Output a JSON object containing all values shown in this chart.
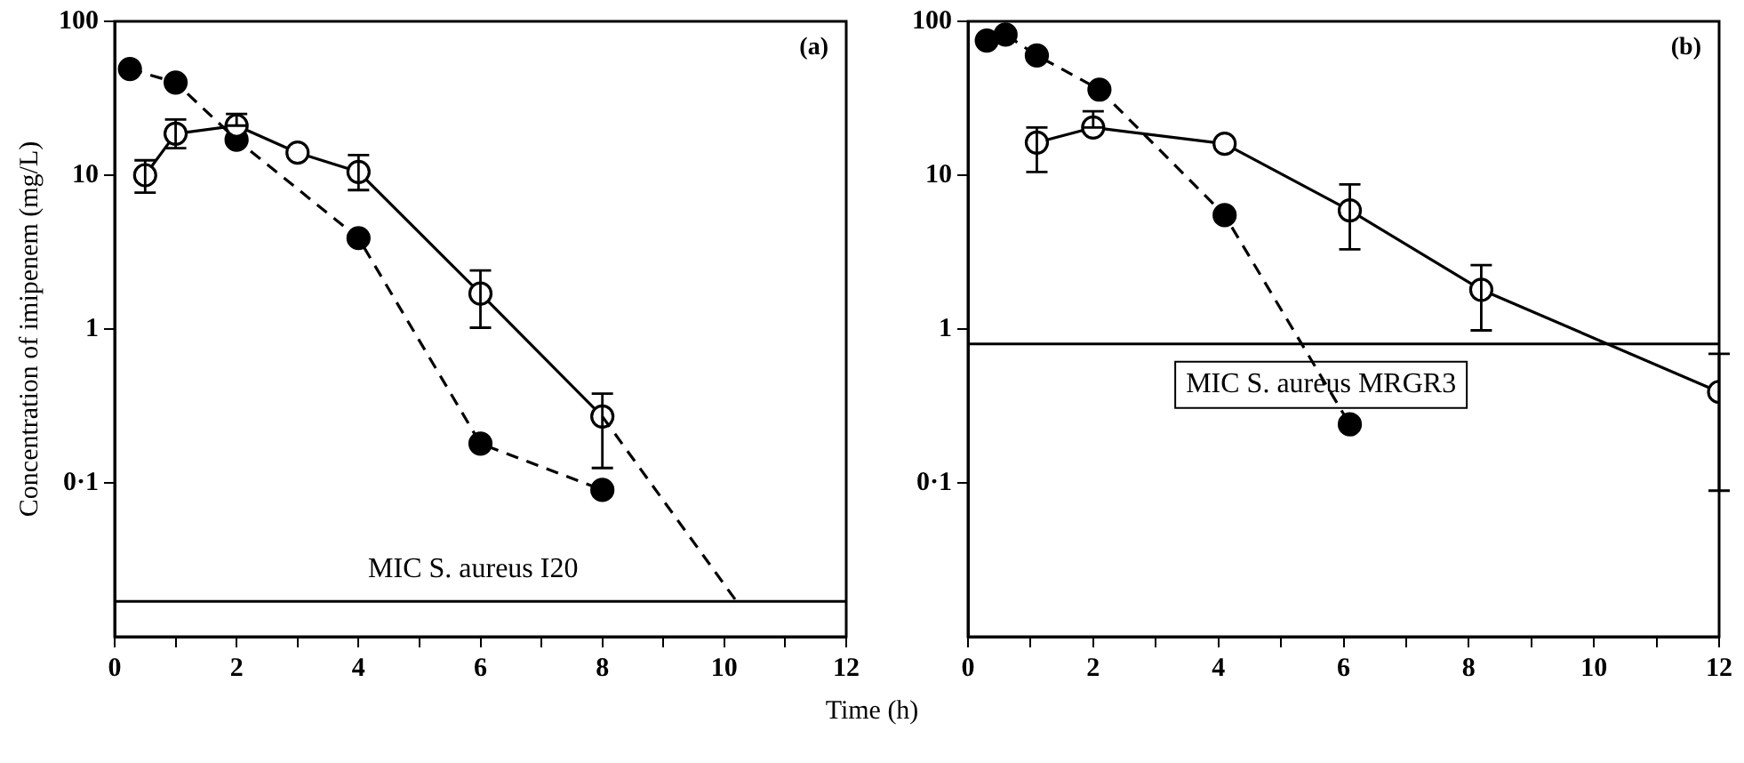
{
  "chart_data": [
    {
      "type": "line",
      "xlabel": "Time (h)",
      "ylabel": "Concentration of imipenem (mg/L)",
      "annotations": [
        "(a)"
      ],
      "log": "y",
      "grid": false,
      "legend": false,
      "marker": "circle",
      "xlim": [
        0,
        12
      ],
      "xticks": [
        0,
        {
          "value": 1,
          "label": null
        },
        2,
        {
          "value": 3,
          "label": null
        },
        4,
        {
          "value": 5,
          "label": null
        },
        6,
        {
          "value": 7,
          "label": null
        },
        8,
        {
          "value": 9,
          "label": null
        },
        10,
        {
          "value": 11,
          "label": null
        },
        12
      ],
      "ylim": [
        0.01,
        100
      ],
      "yticks": [
        {
          "value": 0.1,
          "label": "0·1"
        },
        1,
        10,
        100
      ],
      "ref_lines": [
        {
          "axis": "y",
          "value": 0.017,
          "label": "MIC S. aureus I20"
        }
      ],
      "series": [
        {
          "color": "#000000",
          "line_style": "dashed",
          "x": [
            0.25,
            1,
            2,
            4,
            6,
            8
          ],
          "values": [
            49,
            40,
            17,
            3.9,
            0.18,
            0.09
          ]
        },
        {
          "color": "#ffffff",
          "line_style": "solid",
          "x": [
            0.5,
            1,
            2,
            3,
            4,
            6,
            8
          ],
          "values": [
            10,
            18.6,
            21,
            14,
            10.5,
            1.7,
            0.27
          ],
          "errors": [
            [
              7.7,
              12.5
            ],
            [
              15,
              23
            ],
            [
              21,
              25
            ],
            null,
            [
              8,
              13.5
            ],
            [
              1.02,
              2.4
            ],
            [
              0.125,
              0.38
            ]
          ]
        },
        {
          "color": "#000000",
          "line_style": "dashed",
          "marker": "none",
          "x": [
            8,
            10.2
          ],
          "values": [
            0.27,
            0.017
          ]
        }
      ]
    },
    {
      "type": "line",
      "annotations": [
        "(b)"
      ],
      "log": "y",
      "grid": false,
      "legend": false,
      "marker": "circle",
      "xlim": [
        0,
        12
      ],
      "xticks": [
        0,
        {
          "value": 1,
          "label": null
        },
        2,
        {
          "value": 3,
          "label": null
        },
        4,
        {
          "value": 5,
          "label": null
        },
        6,
        {
          "value": 7,
          "label": null
        },
        8,
        {
          "value": 9,
          "label": null
        },
        10,
        {
          "value": 11,
          "label": null
        },
        12
      ],
      "ylim": [
        0.01,
        100
      ],
      "yticks": [
        {
          "value": 0.1,
          "label": "0·1"
        },
        1,
        10,
        100
      ],
      "ref_lines": [
        {
          "axis": "y",
          "value": 0.8,
          "label": "MIC S. aureus MRGR3"
        }
      ],
      "series": [
        {
          "color": "#000000",
          "line_style": "dashed",
          "x": [
            0.3,
            0.6,
            1.1,
            2.1,
            4.1,
            6.1
          ],
          "values": [
            75,
            82,
            60,
            36,
            5.5,
            0.24
          ]
        },
        {
          "color": "#ffffff",
          "line_style": "solid",
          "x": [
            1.1,
            2,
            4.1,
            6.1,
            8.2,
            12
          ],
          "values": [
            16.3,
            20.4,
            16,
            5.9,
            1.8,
            0.39
          ],
          "errors": [
            [
              10.5,
              20.4
            ],
            [
              20.4,
              26
            ],
            null,
            [
              3.3,
              8.7
            ],
            [
              0.98,
              2.6
            ],
            [
              0.089,
              0.69
            ]
          ]
        }
      ]
    }
  ]
}
